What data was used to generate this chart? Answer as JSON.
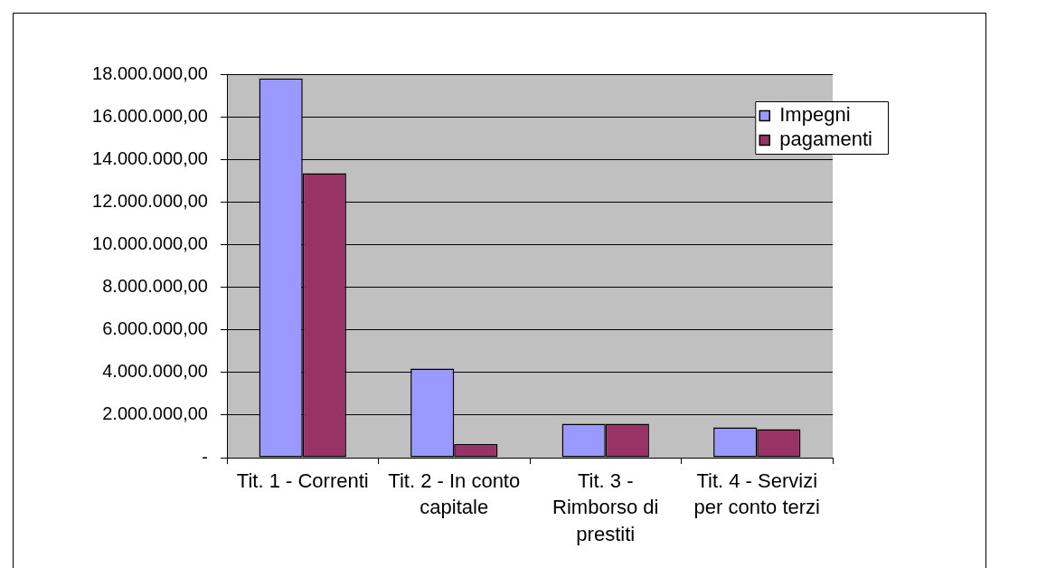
{
  "chart_data": {
    "type": "bar",
    "categories": [
      "Tit. 1 - Correnti",
      "Tit. 2 - In conto capitale",
      "Tit. 3 - Rimborso di prestiti",
      "Tit. 4 - Servizi per conto terzi"
    ],
    "series": [
      {
        "name": "Impegni",
        "color": "#9999ff",
        "values": [
          17800000,
          4180000,
          1590000,
          1420000
        ]
      },
      {
        "name": "pagamenti",
        "color": "#993366",
        "values": [
          13350000,
          640000,
          1590000,
          1340000
        ]
      }
    ],
    "ylim": [
      0,
      18000000
    ],
    "yticks": [
      {
        "value": 0,
        "label": "-"
      },
      {
        "value": 2000000,
        "label": "2.000.000,00"
      },
      {
        "value": 4000000,
        "label": "4.000.000,00"
      },
      {
        "value": 6000000,
        "label": "6.000.000,00"
      },
      {
        "value": 8000000,
        "label": "8.000.000,00"
      },
      {
        "value": 10000000,
        "label": "10.000.000,00"
      },
      {
        "value": 12000000,
        "label": "12.000.000,00"
      },
      {
        "value": 14000000,
        "label": "14.000.000,00"
      },
      {
        "value": 16000000,
        "label": "16.000.000,00"
      },
      {
        "value": 18000000,
        "label": "18.000.000,00"
      }
    ],
    "grid": "y",
    "legend": "top right"
  }
}
